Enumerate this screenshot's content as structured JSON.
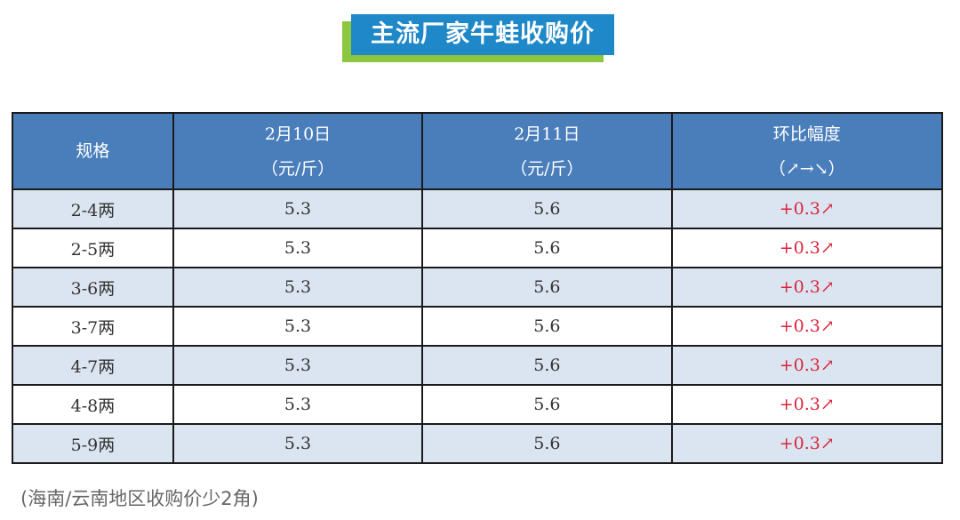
{
  "title": "主流厂家牛蛙收购价",
  "colors": {
    "title_bg": "#1e88c8",
    "title_accent": "#8dc63f",
    "header_bg": "#4a7ebb",
    "row_alt": "#dbe5f1",
    "up": "#d9233a"
  },
  "table": {
    "headers": [
      {
        "line1": "规格",
        "line2": ""
      },
      {
        "line1": "2月10日",
        "line2": "（元/斤）"
      },
      {
        "line1": "2月11日",
        "line2": "（元/斤）"
      },
      {
        "line1": "环比幅度",
        "line2": "（↗→↘）"
      }
    ],
    "rows": [
      {
        "spec": "2-4两",
        "d1": "5.3",
        "d2": "5.6",
        "change": "+0.3↗"
      },
      {
        "spec": "2-5两",
        "d1": "5.3",
        "d2": "5.6",
        "change": "+0.3↗"
      },
      {
        "spec": "3-6两",
        "d1": "5.3",
        "d2": "5.6",
        "change": "+0.3↗"
      },
      {
        "spec": "3-7两",
        "d1": "5.3",
        "d2": "5.6",
        "change": "+0.3↗"
      },
      {
        "spec": "4-7两",
        "d1": "5.3",
        "d2": "5.6",
        "change": "+0.3↗"
      },
      {
        "spec": "4-8两",
        "d1": "5.3",
        "d2": "5.6",
        "change": "+0.3↗"
      },
      {
        "spec": "5-9两",
        "d1": "5.3",
        "d2": "5.6",
        "change": "+0.3↗"
      }
    ]
  },
  "note": "(海南/云南地区收购价少2角)"
}
